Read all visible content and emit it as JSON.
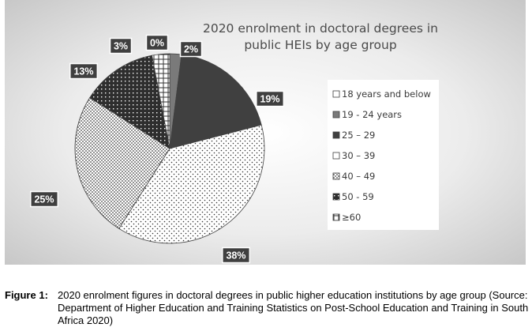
{
  "chart_data": {
    "type": "pie",
    "title": "2020 enrolment in doctoral degrees in public HEIs by age group",
    "title_lines": [
      "2020 enrolment in doctoral degrees in",
      "public HEIs by age group"
    ],
    "categories": [
      "18 years and below",
      "19 - 24  years",
      "25 – 29",
      "30 – 39",
      "40 – 49",
      "50 - 59",
      "≥60"
    ],
    "values": [
      0,
      2,
      19,
      38,
      25,
      13,
      3
    ],
    "data_labels": [
      "0%",
      "2%",
      "19%",
      "38%",
      "25%",
      "13%",
      "3%"
    ],
    "legend_position": "right",
    "colors": {
      "plot_background": "#dcdcdc",
      "slice_dark": "#404040",
      "slice_fill": "#ffffff",
      "label_box": "#3f3f3f"
    }
  },
  "caption": {
    "label": "Figure 1:",
    "text": "2020 enrolment figures in doctoral degrees in public higher education institutions by age group (Source: Department of Higher Education and Training Statistics on Post-School Education and Training in South Africa 2020)"
  }
}
